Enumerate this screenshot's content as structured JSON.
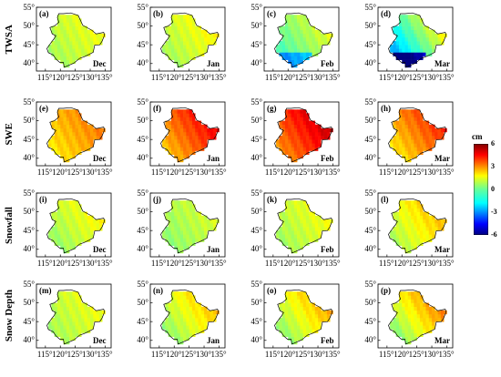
{
  "rows": [
    {
      "label": "TWSA"
    },
    {
      "label": "SWE"
    },
    {
      "label": "Snowfall"
    },
    {
      "label": "Snow Depth"
    }
  ],
  "panels": [
    {
      "letter": "(a)",
      "month": "Dec",
      "base": 0.9,
      "grad": 0.6
    },
    {
      "letter": "(b)",
      "month": "Jan",
      "base": 1.0,
      "grad": 0.8
    },
    {
      "letter": "(c)",
      "month": "Feb",
      "base": 0.2,
      "grad": 1.3
    },
    {
      "letter": "(d)",
      "month": "Mar",
      "base": -0.6,
      "grad": 2.8
    },
    {
      "letter": "(e)",
      "month": "Dec",
      "base": 2.4,
      "grad": 0.9
    },
    {
      "letter": "(f)",
      "month": "Jan",
      "base": 3.4,
      "grad": 1.6
    },
    {
      "letter": "(g)",
      "month": "Feb",
      "base": 4.0,
      "grad": 1.6
    },
    {
      "letter": "(h)",
      "month": "Mar",
      "base": 2.9,
      "grad": 1.6
    },
    {
      "letter": "(i)",
      "month": "Dec",
      "base": 0.9,
      "grad": 0.9
    },
    {
      "letter": "(j)",
      "month": "Jan",
      "base": 0.6,
      "grad": 0.6
    },
    {
      "letter": "(k)",
      "month": "Feb",
      "base": 0.9,
      "grad": 0.7
    },
    {
      "letter": "(l)",
      "month": "Mar",
      "base": 1.4,
      "grad": 1.2
    },
    {
      "letter": "(m)",
      "month": "Dec",
      "base": 0.9,
      "grad": 0.6
    },
    {
      "letter": "(n)",
      "month": "Jan",
      "base": 1.2,
      "grad": 1.4
    },
    {
      "letter": "(o)",
      "month": "Feb",
      "base": 1.3,
      "grad": 1.6
    },
    {
      "letter": "(p)",
      "month": "Mar",
      "base": 1.5,
      "grad": 2.0
    }
  ],
  "axes": {
    "lat_ticks": [
      "55°",
      "50°",
      "45°",
      "40°"
    ],
    "lon_ticks": [
      "115°",
      "120°",
      "125°",
      "130°",
      "135°"
    ],
    "lat_range": [
      38,
      55
    ],
    "lon_range": [
      112,
      137
    ]
  },
  "colorbar": {
    "unit": "cm",
    "range": [
      -6,
      6
    ],
    "ticks": [
      "6",
      "3",
      "0",
      "-3",
      "-6"
    ],
    "colormap": "jet"
  }
}
